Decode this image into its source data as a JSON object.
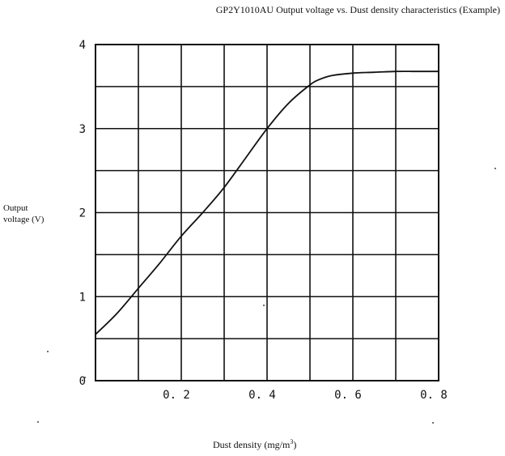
{
  "chart_data": {
    "type": "line",
    "title": "GP2Y1010AU Output voltage vs.  Dust density characteristics (Example)",
    "xlabel": "Dust density (mg/m",
    "xlabel_sup": "3",
    "xlabel_tail": ")",
    "ylabel_line1": "Output",
    "ylabel_line2": "voltage (V)",
    "xlim": [
      0,
      0.8
    ],
    "ylim": [
      0,
      4
    ],
    "x_ticks": [
      0.2,
      0.4,
      0.6,
      0.8
    ],
    "x_tick_labels": [
      "0. 2",
      "0. 4",
      "0. 6",
      "0. 8"
    ],
    "y_ticks": [
      0,
      1,
      2,
      3,
      4
    ],
    "y_tick_labels": [
      "0",
      "1",
      "2",
      "3",
      "4"
    ],
    "grid": true,
    "line_color": "#111111",
    "x": [
      0,
      0.05,
      0.1,
      0.15,
      0.2,
      0.25,
      0.3,
      0.35,
      0.4,
      0.45,
      0.5,
      0.52,
      0.55,
      0.6,
      0.65,
      0.7,
      0.75,
      0.8
    ],
    "y": [
      0.55,
      0.8,
      1.1,
      1.4,
      1.72,
      2.0,
      2.3,
      2.65,
      3.0,
      3.3,
      3.52,
      3.58,
      3.63,
      3.66,
      3.67,
      3.68,
      3.68,
      3.68
    ]
  }
}
